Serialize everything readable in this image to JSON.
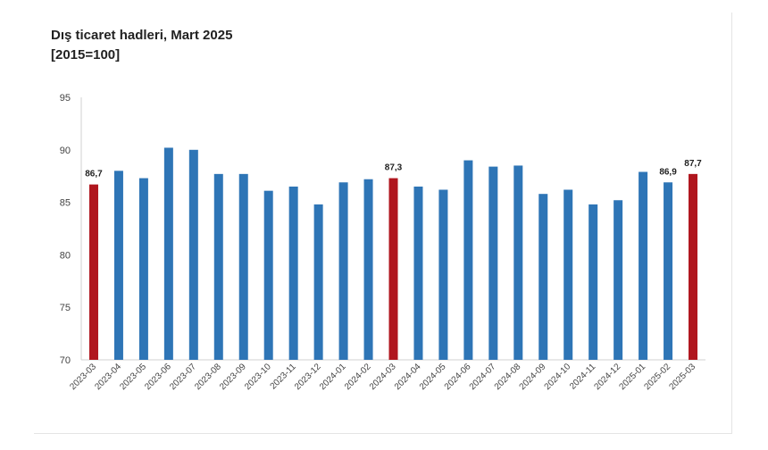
{
  "chart_data": {
    "type": "bar",
    "title": "Dış ticaret hadleri, Mart 2025",
    "subtitle": "[2015=100]",
    "xlabel": "",
    "ylabel": "",
    "ylim": [
      70,
      95
    ],
    "yticks": [
      70,
      75,
      80,
      85,
      90,
      95
    ],
    "grid": false,
    "categories": [
      "2023-03",
      "2023-04",
      "2023-05",
      "2023-06",
      "2023-07",
      "2023-08",
      "2023-09",
      "2023-10",
      "2023-11",
      "2023-12",
      "2024-01",
      "2024-02",
      "2024-03",
      "2024-04",
      "2024-05",
      "2024-06",
      "2024-07",
      "2024-08",
      "2024-09",
      "2024-10",
      "2024-11",
      "2024-12",
      "2025-01",
      "2025-02",
      "2025-03"
    ],
    "values": [
      86.7,
      88.0,
      87.3,
      90.2,
      90.0,
      87.7,
      87.7,
      86.1,
      86.5,
      84.8,
      86.9,
      87.2,
      87.3,
      86.5,
      86.2,
      89.0,
      88.4,
      88.5,
      85.8,
      86.2,
      84.8,
      85.2,
      87.9,
      86.9,
      87.7
    ],
    "highlight": [
      0,
      12,
      24
    ],
    "data_labels": [
      {
        "index": 0,
        "text": "86,7"
      },
      {
        "index": 12,
        "text": "87,3"
      },
      {
        "index": 23,
        "text": "86,9"
      },
      {
        "index": 24,
        "text": "87,7"
      }
    ],
    "colors": {
      "default": "#2e75b6",
      "highlight": "#b0161e"
    }
  }
}
